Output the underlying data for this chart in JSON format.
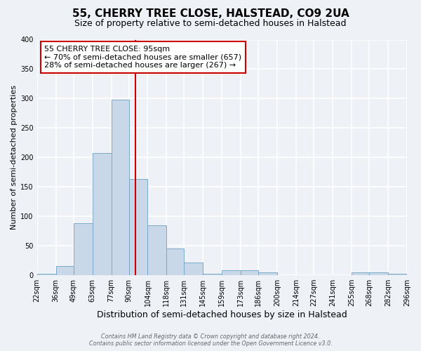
{
  "title": "55, CHERRY TREE CLOSE, HALSTEAD, CO9 2UA",
  "subtitle": "Size of property relative to semi-detached houses in Halstead",
  "xlabel": "Distribution of semi-detached houses by size in Halstead",
  "ylabel": "Number of semi-detached properties",
  "bin_edges": [
    22,
    36,
    49,
    63,
    77,
    90,
    104,
    118,
    131,
    145,
    159,
    173,
    186,
    200,
    214,
    227,
    241,
    255,
    268,
    282,
    296
  ],
  "bar_heights": [
    3,
    15,
    88,
    208,
    298,
    163,
    85,
    45,
    22,
    3,
    8,
    8,
    5,
    0,
    0,
    0,
    0,
    5,
    5,
    3
  ],
  "bar_color": "#c8d8e8",
  "bar_edge_color": "#7aaac8",
  "property_value": 95,
  "vline_color": "#cc0000",
  "annotation_title": "55 CHERRY TREE CLOSE: 95sqm",
  "annotation_line1": "← 70% of semi-detached houses are smaller (657)",
  "annotation_line2": "28% of semi-detached houses are larger (267) →",
  "annotation_box_color": "#ffffff",
  "annotation_box_edge": "#cc0000",
  "ylim": [
    0,
    400
  ],
  "tick_labels": [
    "22sqm",
    "36sqm",
    "49sqm",
    "63sqm",
    "77sqm",
    "90sqm",
    "104sqm",
    "118sqm",
    "131sqm",
    "145sqm",
    "159sqm",
    "173sqm",
    "186sqm",
    "200sqm",
    "214sqm",
    "227sqm",
    "241sqm",
    "255sqm",
    "268sqm",
    "282sqm",
    "296sqm"
  ],
  "footer1": "Contains HM Land Registry data © Crown copyright and database right 2024.",
  "footer2": "Contains public sector information licensed under the Open Government Licence v3.0.",
  "bg_color": "#eef2f7",
  "grid_color": "#ffffff",
  "title_fontsize": 11,
  "subtitle_fontsize": 9,
  "xlabel_fontsize": 9,
  "ylabel_fontsize": 8,
  "tick_fontsize": 7,
  "annotation_fontsize": 8
}
